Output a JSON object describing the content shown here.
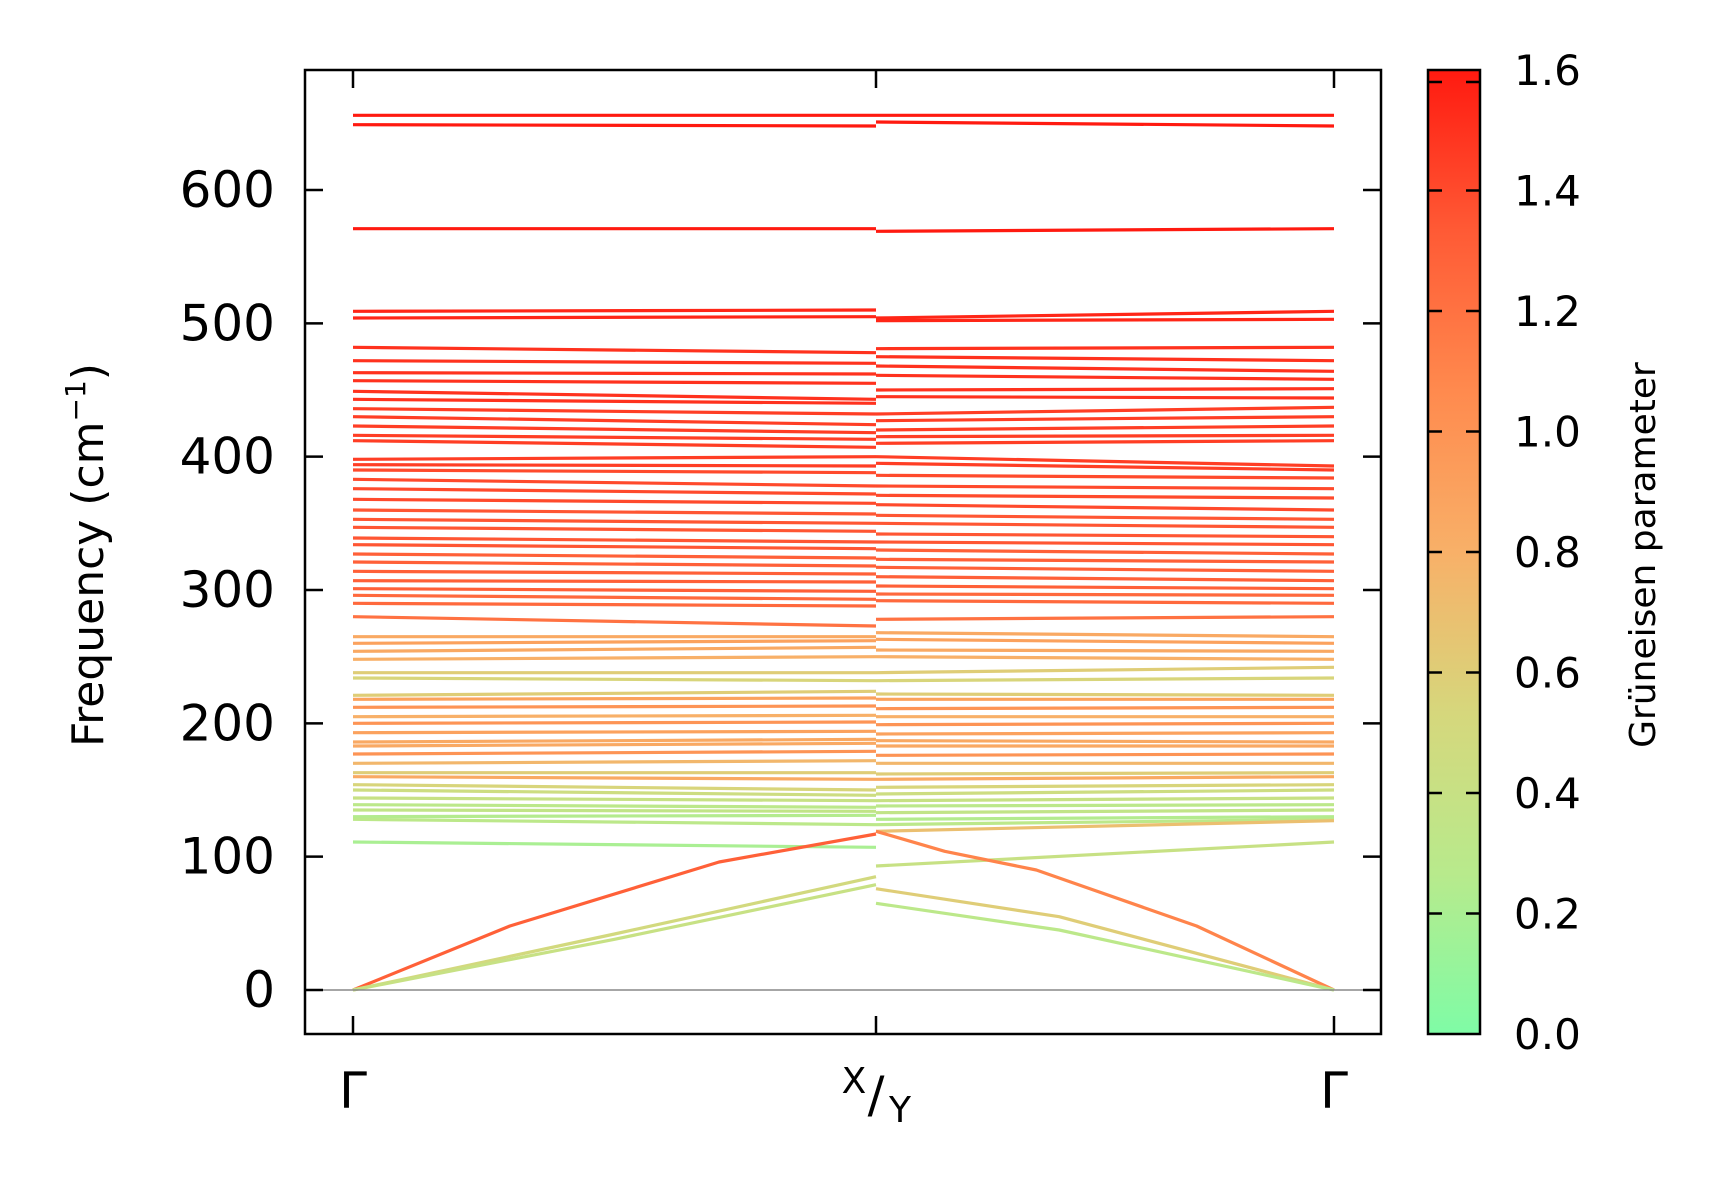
{
  "chart_data": {
    "type": "line",
    "subtype": "phonon-band-structure",
    "ylabel": "Frequency (cm",
    "ylabel_sup": "−1",
    "ylabel_close": ")",
    "ylim": [
      -33,
      690
    ],
    "yticks": [
      0,
      100,
      200,
      300,
      400,
      500,
      600
    ],
    "xticks": [
      {
        "label": "Γ",
        "pos": 0
      },
      {
        "label_top": "X",
        "label_slash": "/",
        "label_bottom": "Y",
        "pos": 1
      },
      {
        "label": "Γ",
        "pos": 2
      }
    ],
    "zero_line": 0,
    "colorbar": {
      "title": "Grüneisen parameter",
      "range": [
        0.0,
        1.6
      ],
      "ticks": [
        "0.0",
        "0.2",
        "0.4",
        "0.6",
        "0.8",
        "1.0",
        "1.2",
        "1.4",
        "1.6"
      ],
      "colors": [
        "#7ffca6",
        "#b8ea8c",
        "#d6d77c",
        "#f8b068",
        "#ff8a4e",
        "#ff5a35",
        "#ff1a10"
      ]
    },
    "acoustic_branches": [
      {
        "segment": "Γ-X",
        "x": [
          0,
          0.3,
          0.7,
          1.0
        ],
        "y": [
          0,
          48,
          96,
          117
        ],
        "grueneisen": 1.3
      },
      {
        "segment": "Γ-X",
        "x": [
          0,
          0.5,
          1.0
        ],
        "y": [
          0,
          42,
          85
        ],
        "grueneisen": 0.5
      },
      {
        "segment": "Γ-X",
        "x": [
          0,
          0.5,
          1.0
        ],
        "y": [
          0,
          38,
          79
        ],
        "grueneisen": 0.4
      },
      {
        "segment": "Y-Γ",
        "x": [
          1.0,
          1.15,
          1.35,
          1.7,
          2.0
        ],
        "y": [
          119,
          104,
          90,
          48,
          0
        ],
        "grueneisen": 1.1
      },
      {
        "segment": "Y-Γ",
        "x": [
          1.0,
          1.4,
          2.0
        ],
        "y": [
          76,
          55,
          0
        ],
        "grueneisen": 0.6
      },
      {
        "segment": "Y-Γ",
        "x": [
          1.0,
          1.4,
          2.0
        ],
        "y": [
          65,
          45,
          0
        ],
        "grueneisen": 0.3
      }
    ],
    "optical_branches": {
      "gamma_x": [
        {
          "y0": 656,
          "y1": 656,
          "g": 1.6
        },
        {
          "y0": 649,
          "y1": 648,
          "g": 1.6
        },
        {
          "y0": 571,
          "y1": 571,
          "g": 1.6
        },
        {
          "y0": 509,
          "y1": 510,
          "g": 1.55
        },
        {
          "y0": 504,
          "y1": 505,
          "g": 1.55
        },
        {
          "y0": 482,
          "y1": 478,
          "g": 1.5
        },
        {
          "y0": 472,
          "y1": 470,
          "g": 1.5
        },
        {
          "y0": 463,
          "y1": 462,
          "g": 1.5
        },
        {
          "y0": 457,
          "y1": 455,
          "g": 1.5
        },
        {
          "y0": 449,
          "y1": 443,
          "g": 1.5
        },
        {
          "y0": 443,
          "y1": 440,
          "g": 1.5
        },
        {
          "y0": 436,
          "y1": 432,
          "g": 1.45
        },
        {
          "y0": 430,
          "y1": 424,
          "g": 1.45
        },
        {
          "y0": 423,
          "y1": 418,
          "g": 1.45
        },
        {
          "y0": 416,
          "y1": 413,
          "g": 1.45
        },
        {
          "y0": 412,
          "y1": 407,
          "g": 1.45
        },
        {
          "y0": 398,
          "y1": 400,
          "g": 1.45
        },
        {
          "y0": 394,
          "y1": 393,
          "g": 1.45
        },
        {
          "y0": 390,
          "y1": 388,
          "g": 1.4
        },
        {
          "y0": 383,
          "y1": 378,
          "g": 1.4
        },
        {
          "y0": 376,
          "y1": 372,
          "g": 1.4
        },
        {
          "y0": 368,
          "y1": 365,
          "g": 1.4
        },
        {
          "y0": 360,
          "y1": 357,
          "g": 1.35
        },
        {
          "y0": 353,
          "y1": 350,
          "g": 1.35
        },
        {
          "y0": 347,
          "y1": 344,
          "g": 1.35
        },
        {
          "y0": 339,
          "y1": 336,
          "g": 1.35
        },
        {
          "y0": 334,
          "y1": 331,
          "g": 1.35
        },
        {
          "y0": 327,
          "y1": 324,
          "g": 1.3
        },
        {
          "y0": 321,
          "y1": 318,
          "g": 1.3
        },
        {
          "y0": 314,
          "y1": 312,
          "g": 1.3
        },
        {
          "y0": 307,
          "y1": 306,
          "g": 1.3
        },
        {
          "y0": 301,
          "y1": 299,
          "g": 1.3
        },
        {
          "y0": 296,
          "y1": 293,
          "g": 1.25
        },
        {
          "y0": 290,
          "y1": 288,
          "g": 1.25
        },
        {
          "y0": 280,
          "y1": 273,
          "g": 1.2
        },
        {
          "y0": 265,
          "y1": 265,
          "g": 0.85
        },
        {
          "y0": 260,
          "y1": 262,
          "g": 0.9
        },
        {
          "y0": 254,
          "y1": 257,
          "g": 0.85
        },
        {
          "y0": 248,
          "y1": 250,
          "g": 0.8
        },
        {
          "y0": 238,
          "y1": 238,
          "g": 0.6
        },
        {
          "y0": 234,
          "y1": 232,
          "g": 0.55
        },
        {
          "y0": 221,
          "y1": 224,
          "g": 0.6
        },
        {
          "y0": 218,
          "y1": 219,
          "g": 0.9
        },
        {
          "y0": 212,
          "y1": 213,
          "g": 1.0
        },
        {
          "y0": 205,
          "y1": 206,
          "g": 0.8
        },
        {
          "y0": 200,
          "y1": 201,
          "g": 1.0
        },
        {
          "y0": 193,
          "y1": 194,
          "g": 0.9
        },
        {
          "y0": 186,
          "y1": 188,
          "g": 0.85
        },
        {
          "y0": 183,
          "y1": 185,
          "g": 0.85
        },
        {
          "y0": 177,
          "y1": 179,
          "g": 1.0
        },
        {
          "y0": 170,
          "y1": 172,
          "g": 0.75
        },
        {
          "y0": 163,
          "y1": 163,
          "g": 0.6
        },
        {
          "y0": 160,
          "y1": 158,
          "g": 0.85
        },
        {
          "y0": 154,
          "y1": 150,
          "g": 0.55
        },
        {
          "y0": 150,
          "y1": 146,
          "g": 0.45
        },
        {
          "y0": 144,
          "y1": 142,
          "g": 0.4
        },
        {
          "y0": 139,
          "y1": 137,
          "g": 0.3
        },
        {
          "y0": 135,
          "y1": 134,
          "g": 0.35
        },
        {
          "y0": 130,
          "y1": 131,
          "g": 0.25
        },
        {
          "y0": 128,
          "y1": 124,
          "g": 0.3
        },
        {
          "y0": 111,
          "y1": 107,
          "g": 0.2
        }
      ],
      "y_gamma": [
        {
          "y0": 656,
          "y1": 656,
          "g": 1.6
        },
        {
          "y0": 651,
          "y1": 648,
          "g": 1.6
        },
        {
          "y0": 569,
          "y1": 571,
          "g": 1.6
        },
        {
          "y0": 504,
          "y1": 509,
          "g": 1.55
        },
        {
          "y0": 502,
          "y1": 503,
          "g": 1.55
        },
        {
          "y0": 481,
          "y1": 482,
          "g": 1.5
        },
        {
          "y0": 475,
          "y1": 472,
          "g": 1.5
        },
        {
          "y0": 468,
          "y1": 464,
          "g": 1.5
        },
        {
          "y0": 461,
          "y1": 458,
          "g": 1.5
        },
        {
          "y0": 450,
          "y1": 451,
          "g": 1.5
        },
        {
          "y0": 445,
          "y1": 444,
          "g": 1.5
        },
        {
          "y0": 432,
          "y1": 437,
          "g": 1.45
        },
        {
          "y0": 427,
          "y1": 430,
          "g": 1.45
        },
        {
          "y0": 420,
          "y1": 423,
          "g": 1.45
        },
        {
          "y0": 415,
          "y1": 416,
          "g": 1.45
        },
        {
          "y0": 410,
          "y1": 412,
          "g": 1.45
        },
        {
          "y0": 400,
          "y1": 393,
          "g": 1.45
        },
        {
          "y0": 395,
          "y1": 390,
          "g": 1.45
        },
        {
          "y0": 386,
          "y1": 384,
          "g": 1.4
        },
        {
          "y0": 378,
          "y1": 376,
          "g": 1.4
        },
        {
          "y0": 371,
          "y1": 369,
          "g": 1.4
        },
        {
          "y0": 364,
          "y1": 360,
          "g": 1.4
        },
        {
          "y0": 356,
          "y1": 353,
          "g": 1.35
        },
        {
          "y0": 350,
          "y1": 347,
          "g": 1.35
        },
        {
          "y0": 342,
          "y1": 340,
          "g": 1.35
        },
        {
          "y0": 336,
          "y1": 334,
          "g": 1.35
        },
        {
          "y0": 330,
          "y1": 327,
          "g": 1.3
        },
        {
          "y0": 323,
          "y1": 321,
          "g": 1.3
        },
        {
          "y0": 317,
          "y1": 314,
          "g": 1.3
        },
        {
          "y0": 310,
          "y1": 307,
          "g": 1.3
        },
        {
          "y0": 303,
          "y1": 301,
          "g": 1.3
        },
        {
          "y0": 297,
          "y1": 296,
          "g": 1.25
        },
        {
          "y0": 292,
          "y1": 290,
          "g": 1.25
        },
        {
          "y0": 278,
          "y1": 280,
          "g": 1.2
        },
        {
          "y0": 268,
          "y1": 265,
          "g": 0.85
        },
        {
          "y0": 263,
          "y1": 260,
          "g": 0.9
        },
        {
          "y0": 255,
          "y1": 254,
          "g": 0.85
        },
        {
          "y0": 250,
          "y1": 248,
          "g": 0.8
        },
        {
          "y0": 238,
          "y1": 242,
          "g": 0.6
        },
        {
          "y0": 232,
          "y1": 234,
          "g": 0.55
        },
        {
          "y0": 222,
          "y1": 221,
          "g": 0.6
        },
        {
          "y0": 218,
          "y1": 218,
          "g": 0.9
        },
        {
          "y0": 211,
          "y1": 212,
          "g": 1.0
        },
        {
          "y0": 205,
          "y1": 205,
          "g": 0.8
        },
        {
          "y0": 199,
          "y1": 200,
          "g": 1.0
        },
        {
          "y0": 192,
          "y1": 193,
          "g": 0.9
        },
        {
          "y0": 187,
          "y1": 186,
          "g": 0.85
        },
        {
          "y0": 183,
          "y1": 183,
          "g": 0.85
        },
        {
          "y0": 176,
          "y1": 177,
          "g": 1.0
        },
        {
          "y0": 170,
          "y1": 170,
          "g": 0.75
        },
        {
          "y0": 162,
          "y1": 163,
          "g": 0.6
        },
        {
          "y0": 158,
          "y1": 160,
          "g": 0.85
        },
        {
          "y0": 152,
          "y1": 154,
          "g": 0.55
        },
        {
          "y0": 147,
          "y1": 150,
          "g": 0.45
        },
        {
          "y0": 142,
          "y1": 144,
          "g": 0.4
        },
        {
          "y0": 138,
          "y1": 139,
          "g": 0.3
        },
        {
          "y0": 133,
          "y1": 135,
          "g": 0.35
        },
        {
          "y0": 128,
          "y1": 130,
          "g": 0.25
        },
        {
          "y0": 124,
          "y1": 128,
          "g": 0.3
        },
        {
          "y0": 119,
          "y1": 127,
          "g": 0.7
        },
        {
          "y0": 93,
          "y1": 111,
          "g": 0.4
        }
      ]
    }
  }
}
